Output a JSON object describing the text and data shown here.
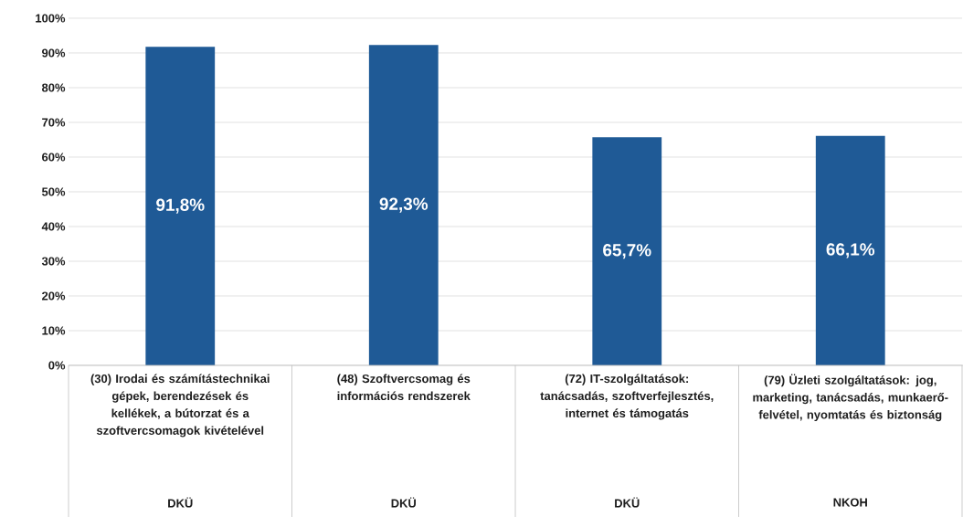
{
  "chart_data": {
    "type": "bar",
    "categories": [
      "(30) Irodai és számítástechnikai gépek, berendezések és kellékek, a bútorzat és a szoftvercsomagok kivételével",
      "(48) Szoftvercsomag és információs rendszerek",
      "(72) IT-szolgáltatások: tanácsadás, szoftverfejlesztés, internet és támogatás",
      "(79) Üzleti szolgáltatások: jog, marketing, tanácsadás, munkaerő-felvétel, nyomtatás és biztonság"
    ],
    "values": [
      91.8,
      92.3,
      65.7,
      66.1
    ],
    "color": "#1f5a96",
    "value_labels": [
      "91,8%",
      "92,3%",
      "65,7%",
      "66,1%"
    ],
    "ylim": [
      0,
      100
    ],
    "yticks": [
      {
        "value": 0,
        "label": "0%"
      },
      {
        "value": 10,
        "label": "10%"
      },
      {
        "value": 20,
        "label": "20%"
      },
      {
        "value": 30,
        "label": "30%"
      },
      {
        "value": 40,
        "label": "40%"
      },
      {
        "value": 50,
        "label": "50%"
      },
      {
        "value": 60,
        "label": "60%"
      },
      {
        "value": 70,
        "label": "70%"
      },
      {
        "value": 80,
        "label": "80%"
      },
      {
        "value": 90,
        "label": "90%"
      },
      {
        "value": 100,
        "label": "100%"
      }
    ],
    "grid": "y",
    "annotations": [
      "DKÜ",
      "DKÜ",
      "DKÜ",
      "NKOH"
    ]
  }
}
